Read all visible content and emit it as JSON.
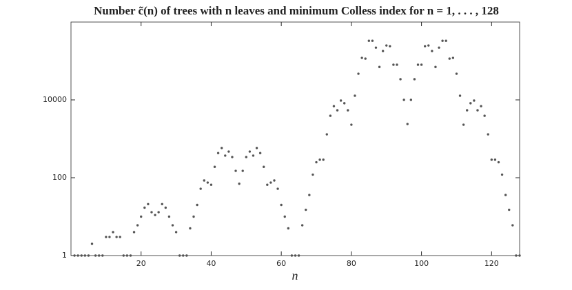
{
  "chart_data": {
    "type": "scatter",
    "title": "Number c̃(n) of trees with n leaves and minimum Colless index for n = 1, . . . , 128",
    "x_label": "n",
    "x": [
      1,
      2,
      3,
      4,
      5,
      6,
      7,
      8,
      9,
      10,
      11,
      12,
      13,
      14,
      15,
      16,
      17,
      18,
      19,
      20,
      21,
      22,
      23,
      24,
      25,
      26,
      27,
      28,
      29,
      30,
      31,
      32,
      33,
      34,
      35,
      36,
      37,
      38,
      39,
      40,
      41,
      42,
      43,
      44,
      45,
      46,
      47,
      48,
      49,
      50,
      51,
      52,
      53,
      54,
      55,
      56,
      57,
      58,
      59,
      60,
      61,
      62,
      63,
      64,
      65,
      66,
      67,
      68,
      69,
      70,
      71,
      72,
      73,
      74,
      75,
      76,
      77,
      78,
      79,
      80,
      81,
      82,
      83,
      84,
      85,
      86,
      87,
      88,
      89,
      90,
      91,
      92,
      93,
      94,
      95,
      96,
      97,
      98,
      99,
      100,
      101,
      102,
      103,
      104,
      105,
      106,
      107,
      108,
      109,
      110,
      111,
      112,
      113,
      114,
      115,
      116,
      117,
      118,
      119,
      120,
      121,
      122,
      123,
      124,
      125,
      126,
      127,
      128
    ],
    "values": [
      1,
      1,
      1,
      1,
      1,
      2,
      1,
      1,
      1,
      3,
      3,
      4,
      3,
      3,
      1,
      1,
      1,
      4,
      6,
      10,
      17,
      21,
      13,
      11,
      13,
      21,
      17,
      10,
      6,
      4,
      1,
      1,
      1,
      5,
      10,
      20,
      52,
      85,
      75,
      66,
      190,
      430,
      580,
      370,
      470,
      340,
      150,
      70,
      150,
      340,
      470,
      370,
      580,
      430,
      190,
      66,
      75,
      85,
      52,
      20,
      10,
      5,
      1,
      1,
      1,
      6,
      15,
      36,
      120,
      250,
      290,
      290,
      1300,
      3900,
      6900,
      5400,
      9600,
      8200,
      5400,
      2300,
      12800,
      47000,
      120000,
      115000,
      330000,
      330000,
      220000,
      70000,
      180000,
      250000,
      240000,
      80000,
      80000,
      34000,
      10000,
      2400,
      10000,
      34000,
      80000,
      80000,
      240000,
      250000,
      180000,
      70000,
      220000,
      330000,
      330000,
      115000,
      120000,
      47000,
      12800,
      2300,
      5400,
      8200,
      9600,
      5400,
      6900,
      3900,
      1300,
      290,
      290,
      250,
      120,
      36,
      15,
      6,
      1,
      1
    ],
    "color": "#555555",
    "log_y": true,
    "xlim": [
      0,
      128
    ],
    "xticks": [
      20,
      40,
      60,
      80,
      100,
      120
    ],
    "ylim": [
      1,
      1000000
    ],
    "yticks": [
      1,
      100,
      10000
    ]
  }
}
